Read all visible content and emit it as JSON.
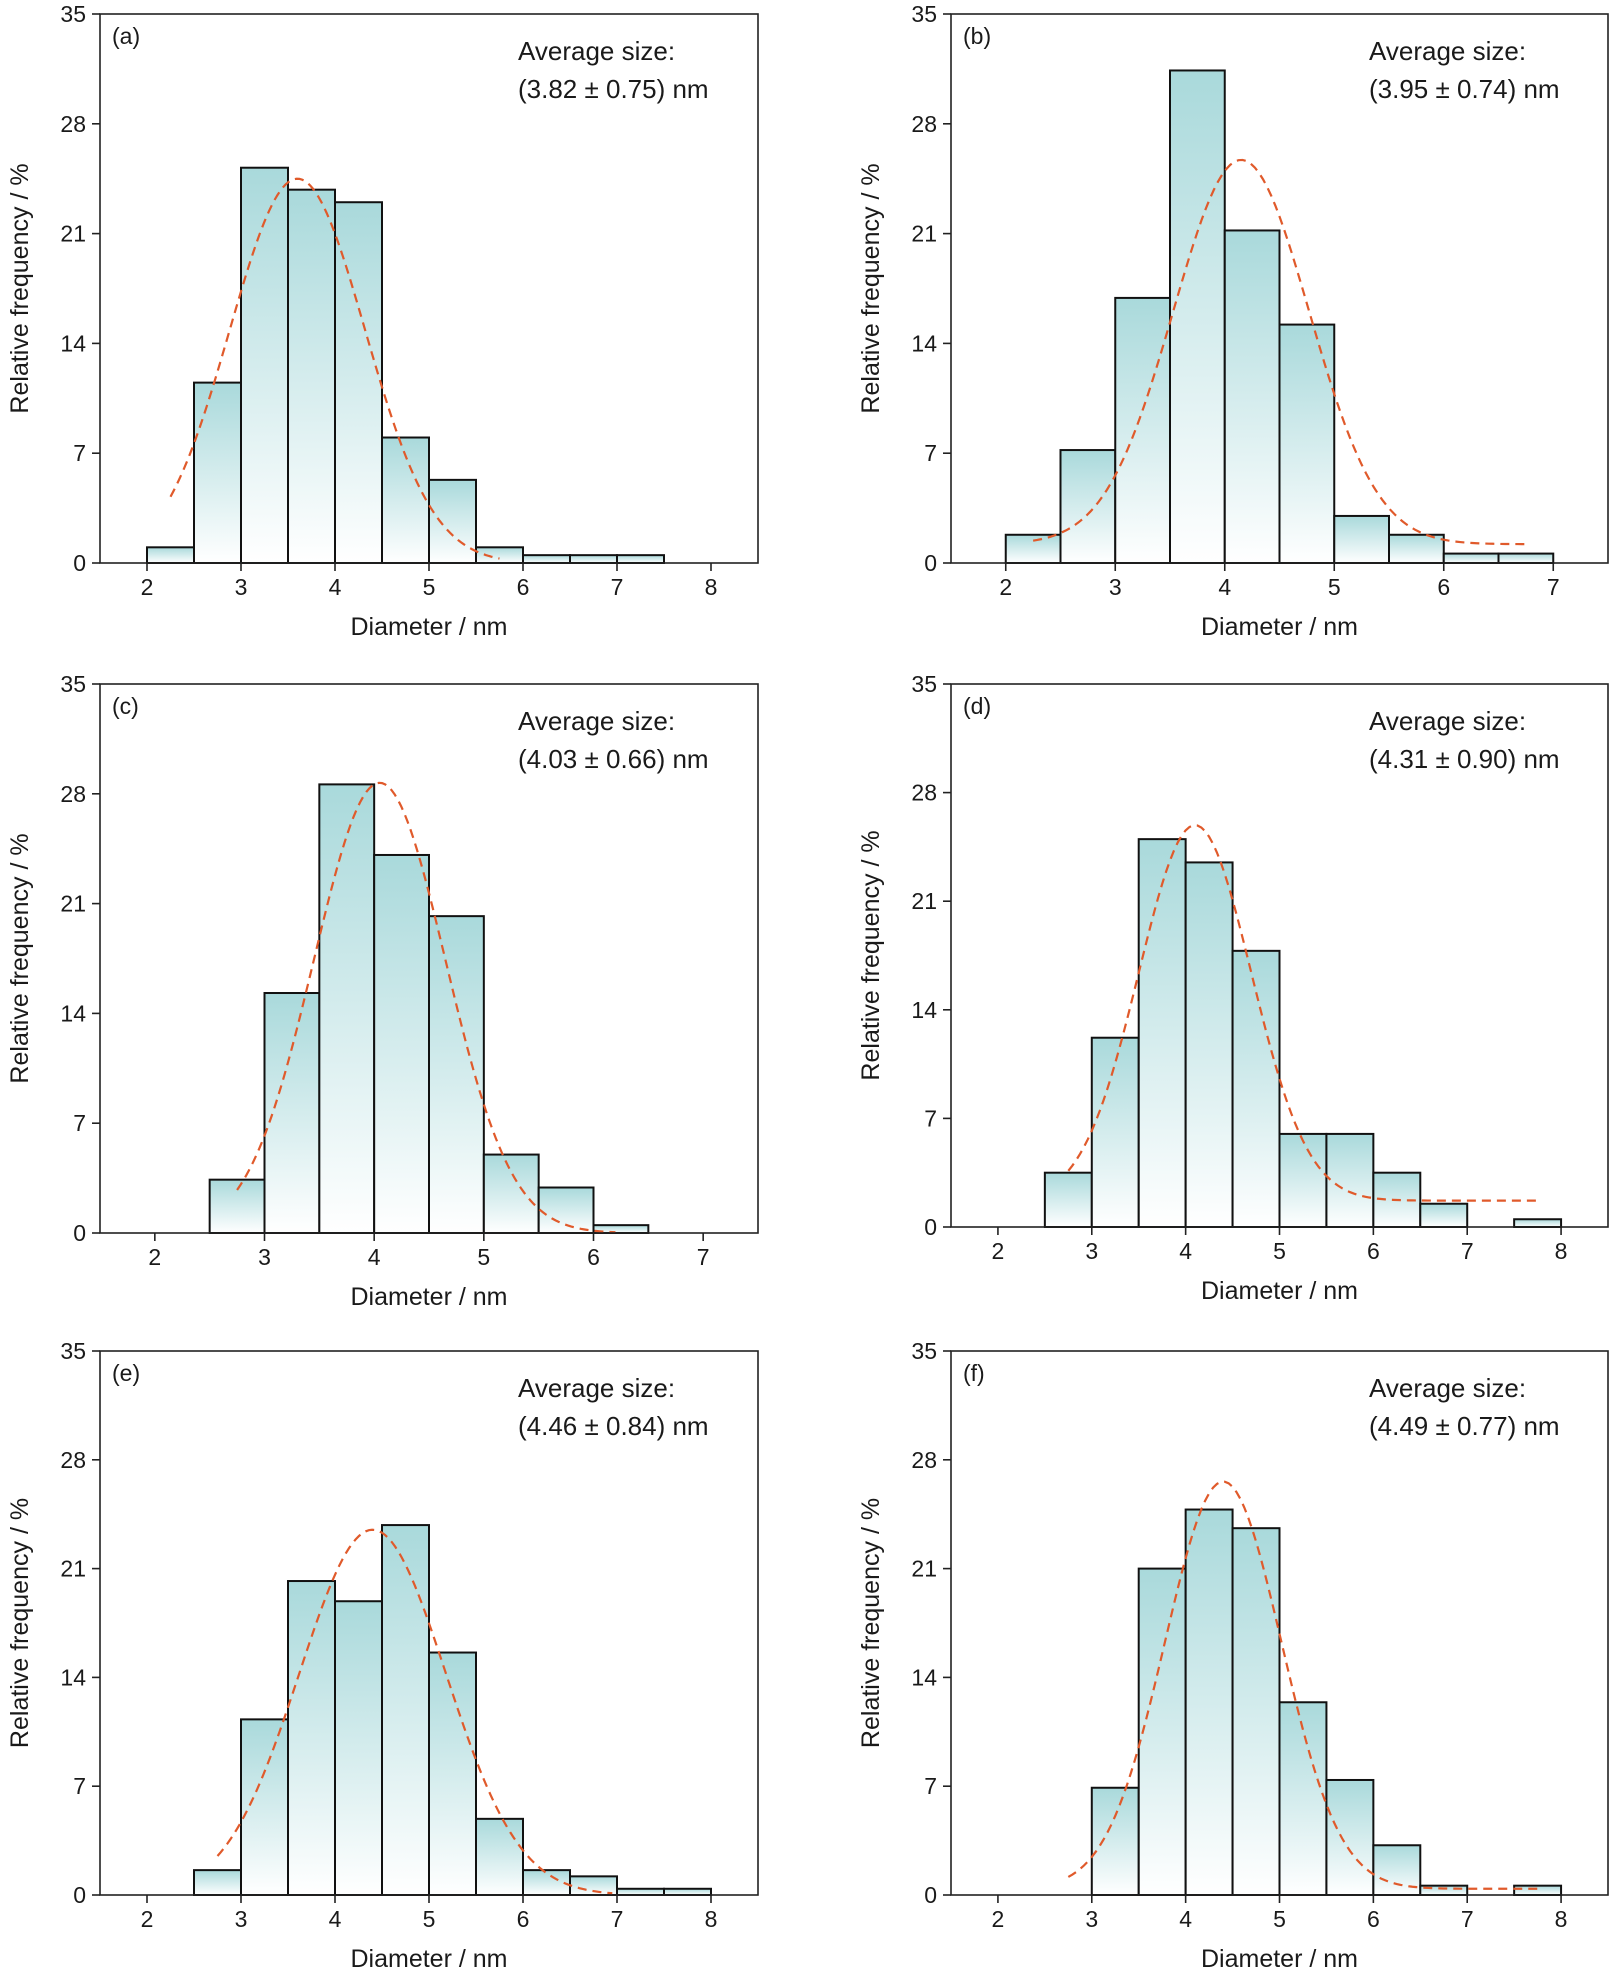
{
  "colors": {
    "bar_top": "#a9d9db",
    "bar_bottom": "#ffffff",
    "bar_stroke": "#111111",
    "fit_curve": "#e05a2b",
    "axes": "#222222"
  },
  "chart_data": [
    {
      "type": "bar",
      "panel": "(a)",
      "xlabel": "Diameter / nm",
      "ylabel": "Relative frequency / %",
      "xlim": [
        1.5,
        8.5
      ],
      "ylim": [
        0,
        35
      ],
      "xticks": [
        2,
        3,
        4,
        5,
        6,
        7,
        8
      ],
      "yticks": [
        0,
        7,
        14,
        21,
        28,
        35
      ],
      "annotation": [
        "Average size:",
        "(3.82 ± 0.75) nm"
      ],
      "bin_width": 0.5,
      "bins": [
        2.0,
        2.5,
        3.0,
        3.5,
        4.0,
        4.5,
        5.0,
        5.5,
        6.0,
        6.5,
        7.0
      ],
      "values": [
        1.0,
        11.5,
        25.2,
        23.8,
        23.0,
        8.0,
        5.3,
        1.0,
        0.5,
        0.5,
        0.5
      ],
      "fit": {
        "type": "gaussian",
        "mu": 3.6,
        "sigma": 0.72,
        "amp": 24.5,
        "base": 0,
        "range": [
          2.25,
          5.75
        ]
      }
    },
    {
      "type": "bar",
      "panel": "(b)",
      "xlabel": "Diameter / nm",
      "ylabel": "Relative frequency / %",
      "xlim": [
        1.5,
        7.5
      ],
      "ylim": [
        0,
        35
      ],
      "xticks": [
        2,
        3,
        4,
        5,
        6,
        7
      ],
      "yticks": [
        0,
        7,
        14,
        21,
        28,
        35
      ],
      "annotation": [
        "Average size:",
        "(3.95 ± 0.74) nm"
      ],
      "bin_width": 0.5,
      "bins": [
        2.0,
        2.5,
        3.0,
        3.5,
        4.0,
        4.5,
        5.0,
        5.5,
        6.0,
        6.5
      ],
      "values": [
        1.8,
        7.2,
        16.9,
        31.4,
        21.2,
        15.2,
        3.0,
        1.8,
        0.6,
        0.6
      ],
      "fit": {
        "type": "gaussian",
        "mu": 4.15,
        "sigma": 0.62,
        "amp": 24.5,
        "base": 1.2,
        "range": [
          2.25,
          6.75
        ]
      }
    },
    {
      "type": "bar",
      "panel": "(c)",
      "xlabel": "Diameter / nm",
      "ylabel": "Relative frequency / %",
      "xlim": [
        1.5,
        7.5
      ],
      "ylim": [
        0,
        35
      ],
      "xticks": [
        2,
        3,
        4,
        5,
        6,
        7
      ],
      "yticks": [
        0,
        7,
        14,
        21,
        28,
        35
      ],
      "annotation": [
        "Average size:",
        "(4.03 ± 0.66) nm"
      ],
      "bin_width": 0.5,
      "bins": [
        2.5,
        3.0,
        3.5,
        4.0,
        4.5,
        5.0,
        5.5,
        6.0
      ],
      "values": [
        3.4,
        15.3,
        28.6,
        24.1,
        20.2,
        5.0,
        2.9,
        0.5
      ],
      "fit": {
        "type": "gaussian",
        "mu": 4.05,
        "sigma": 0.6,
        "amp": 28.7,
        "base": 0,
        "range": [
          2.75,
          6.2
        ]
      }
    },
    {
      "type": "bar",
      "panel": "(d)",
      "xlabel": "Diameter / nm",
      "ylabel": "Relative frequency / %",
      "xlim": [
        1.5,
        8.5
      ],
      "ylim": [
        0,
        35
      ],
      "xticks": [
        2,
        3,
        4,
        5,
        6,
        7,
        8
      ],
      "yticks": [
        0,
        7,
        14,
        21,
        28,
        35
      ],
      "annotation": [
        "Average size:",
        "(4.31 ± 0.90) nm"
      ],
      "bin_width": 0.5,
      "bins": [
        2.5,
        3.0,
        3.5,
        4.0,
        4.5,
        5.0,
        5.5,
        6.0,
        6.5,
        7.5
      ],
      "values": [
        3.5,
        12.2,
        25.0,
        23.5,
        17.8,
        6.0,
        6.0,
        3.5,
        1.5,
        0.5
      ],
      "fit": {
        "type": "gaussian",
        "mu": 4.1,
        "sigma": 0.6,
        "amp": 24.2,
        "base": 1.7,
        "range": [
          2.75,
          7.75
        ]
      }
    },
    {
      "type": "bar",
      "panel": "(e)",
      "xlabel": "Diameter / nm",
      "ylabel": "Relative frequency / %",
      "xlim": [
        1.5,
        8.5
      ],
      "ylim": [
        0,
        35
      ],
      "xticks": [
        2,
        3,
        4,
        5,
        6,
        7,
        8
      ],
      "yticks": [
        0,
        7,
        14,
        21,
        28,
        35
      ],
      "annotation": [
        "Average size:",
        "(4.46 ± 0.84) nm"
      ],
      "bin_width": 0.5,
      "bins": [
        2.5,
        3.0,
        3.5,
        4.0,
        4.5,
        5.0,
        5.5,
        6.0,
        6.5,
        7.0,
        7.5
      ],
      "values": [
        1.6,
        11.3,
        20.2,
        18.9,
        23.8,
        15.6,
        4.9,
        1.6,
        1.2,
        0.4,
        0.4
      ],
      "fit": {
        "type": "gaussian",
        "mu": 4.4,
        "sigma": 0.78,
        "amp": 23.5,
        "base": 0,
        "range": [
          2.75,
          6.95
        ]
      }
    },
    {
      "type": "bar",
      "panel": "(f)",
      "xlabel": "Diameter / nm",
      "ylabel": "Relative frequency / %",
      "xlim": [
        1.5,
        8.5
      ],
      "ylim": [
        0,
        35
      ],
      "xticks": [
        2,
        3,
        4,
        5,
        6,
        7,
        8
      ],
      "yticks": [
        0,
        7,
        14,
        21,
        28,
        35
      ],
      "annotation": [
        "Average size:",
        "(4.49 ± 0.77) nm"
      ],
      "bin_width": 0.5,
      "bins": [
        3.0,
        3.5,
        4.0,
        4.5,
        5.0,
        5.5,
        6.0,
        6.5,
        7.5
      ],
      "values": [
        6.9,
        21.0,
        24.8,
        23.6,
        12.4,
        7.4,
        3.2,
        0.6,
        0.6
      ],
      "fit": {
        "type": "gaussian",
        "mu": 4.4,
        "sigma": 0.62,
        "amp": 26.2,
        "base": 0.4,
        "range": [
          2.75,
          7.75
        ]
      }
    }
  ]
}
